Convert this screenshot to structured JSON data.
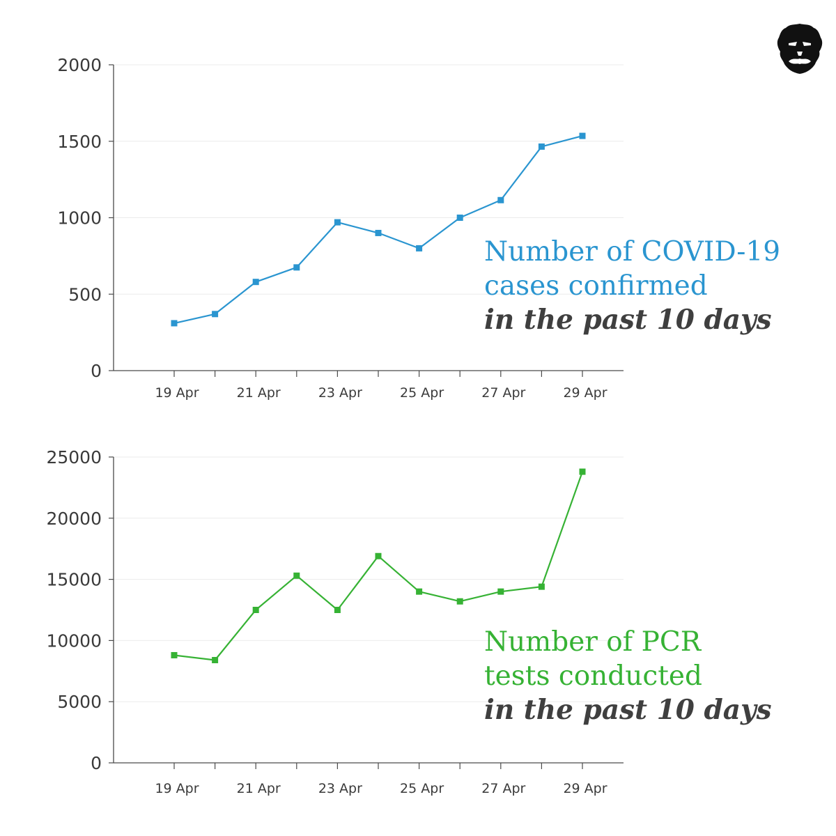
{
  "logo": {
    "icon": "lion-face-icon"
  },
  "chart_data": [
    {
      "type": "line",
      "title_lines": [
        "Number of COVID-19",
        "cases confirmed"
      ],
      "title_italic": "in the past 10 days",
      "color": "#2a95d0",
      "x": [
        "19 Apr",
        "20 Apr",
        "21 Apr",
        "22 Apr",
        "23 Apr",
        "24 Apr",
        "25 Apr",
        "26 Apr",
        "27 Apr",
        "28 Apr",
        "29 Apr"
      ],
      "x_tick_labels": [
        "19 Apr",
        "21 Apr",
        "23 Apr",
        "25 Apr",
        "27 Apr",
        "29 Apr"
      ],
      "values": [
        310,
        370,
        580,
        675,
        970,
        900,
        800,
        1000,
        1115,
        1465,
        1535
      ],
      "ylim": [
        0,
        2000
      ],
      "yticks": [
        "0",
        "500",
        "1000",
        "1500",
        "2000"
      ],
      "grid": true
    },
    {
      "type": "line",
      "title_lines": [
        "Number of PCR",
        "tests conducted"
      ],
      "title_italic": "in the past 10 days",
      "color": "#36b234",
      "x": [
        "19 Apr",
        "20 Apr",
        "21 Apr",
        "22 Apr",
        "23 Apr",
        "24 Apr",
        "25 Apr",
        "26 Apr",
        "27 Apr",
        "28 Apr",
        "29 Apr"
      ],
      "x_tick_labels": [
        "19 Apr",
        "21 Apr",
        "23 Apr",
        "25 Apr",
        "27 Apr",
        "29 Apr"
      ],
      "values": [
        8800,
        8400,
        12500,
        15300,
        12500,
        16900,
        14000,
        13200,
        14000,
        14400,
        23800
      ],
      "ylim": [
        0,
        25000
      ],
      "yticks": [
        "0",
        "5000",
        "10000",
        "15000",
        "20000",
        "25000"
      ],
      "grid": true
    }
  ]
}
